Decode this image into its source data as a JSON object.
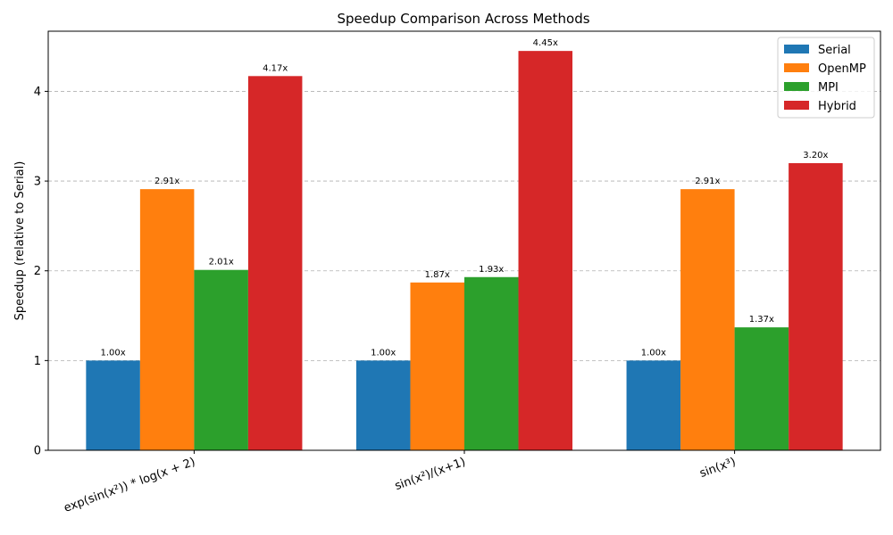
{
  "chart_data": {
    "type": "bar",
    "title": "Speedup Comparison Across Methods",
    "xlabel": "",
    "ylabel": "Speedup (relative to Serial)",
    "categories": [
      "exp(sin(x²)) * log(x + 2)",
      "sin(x²)/(x+1)",
      "sin(x³)"
    ],
    "series": [
      {
        "name": "Serial",
        "color": "#1f77b4",
        "values": [
          1.0,
          1.0,
          1.0
        ],
        "labels": [
          "1.00x",
          "1.00x",
          "1.00x"
        ]
      },
      {
        "name": "OpenMP",
        "color": "#ff7f0e",
        "values": [
          2.91,
          1.87,
          2.91
        ],
        "labels": [
          "2.91x",
          "1.87x",
          "2.91x"
        ]
      },
      {
        "name": "MPI",
        "color": "#2ca02c",
        "values": [
          2.01,
          1.93,
          1.37
        ],
        "labels": [
          "2.01x",
          "1.93x",
          "1.37x"
        ]
      },
      {
        "name": "Hybrid",
        "color": "#d62728",
        "values": [
          4.17,
          4.45,
          3.2
        ],
        "labels": [
          "4.17x",
          "4.45x",
          "3.20x"
        ]
      }
    ],
    "yticks": [
      0,
      1,
      2,
      3,
      4
    ],
    "ytick_labels": [
      "0",
      "1",
      "2",
      "3",
      "4"
    ],
    "ylim": [
      0,
      4.67
    ],
    "grid": "y-dashed",
    "legend": "top-right"
  }
}
